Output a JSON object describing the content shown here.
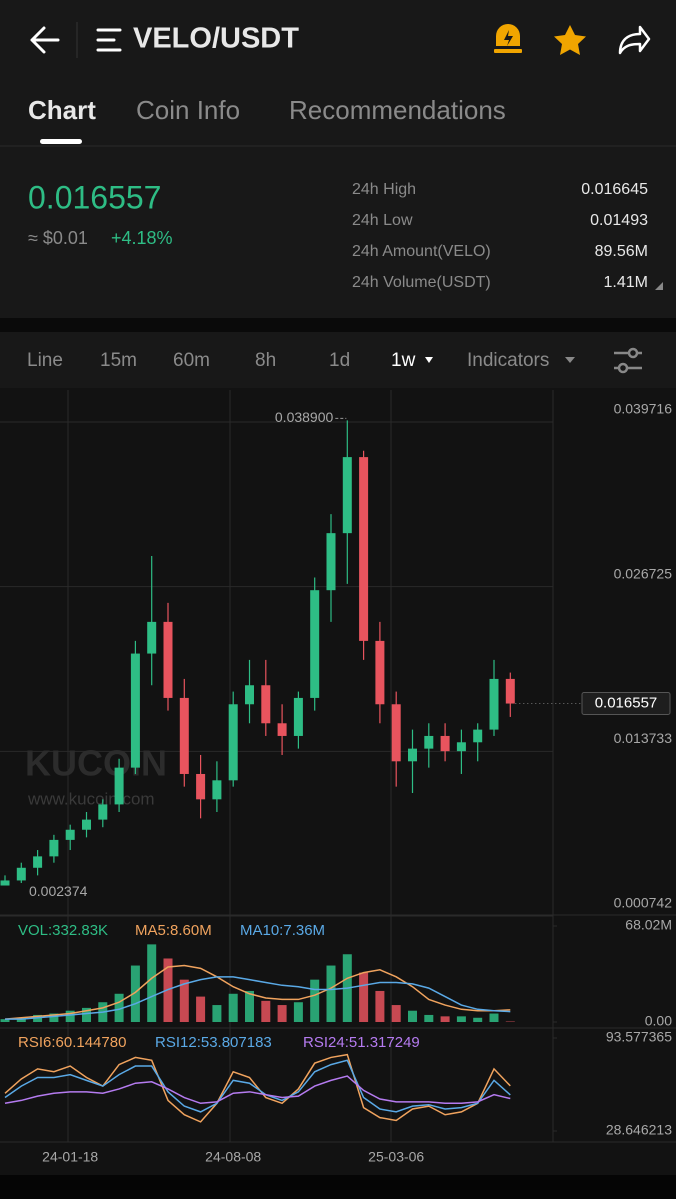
{
  "header": {
    "title": "VELO/USDT"
  },
  "tabs": [
    "Chart",
    "Coin Info",
    "Recommendations"
  ],
  "ticker": {
    "price": "0.016557",
    "usd": "≈ $0.01",
    "change": "+4.18%",
    "stats": [
      {
        "label": "24h High",
        "value": "0.016645"
      },
      {
        "label": "24h Low",
        "value": "0.01493"
      },
      {
        "label": "24h Amount(VELO)",
        "value": "89.56M"
      },
      {
        "label": "24h Volume(USDT)",
        "value": "1.41M"
      }
    ]
  },
  "timeframes": [
    "Line",
    "15m",
    "60m",
    "8h",
    "1d",
    "1w",
    "Indicators"
  ],
  "watermark": {
    "logo": "KUCOIN",
    "url": "www.kucoin.com"
  },
  "chart_data": [
    {
      "type": "candlestick",
      "up_color": "#2ebd85",
      "down_color": "#e8545e",
      "grid": true,
      "categories": [
        null,
        null,
        null,
        null,
        "24-01-18",
        null,
        null,
        null,
        null,
        null,
        null,
        null,
        null,
        null,
        "24-08-08",
        null,
        null,
        null,
        null,
        null,
        null,
        null,
        null,
        null,
        "25-03-06",
        null,
        null,
        null,
        null,
        null,
        null,
        null
      ],
      "open": [
        0.0022,
        0.0026,
        0.0036,
        0.0045,
        0.0058,
        0.0066,
        0.0074,
        0.0086,
        0.0115,
        0.0205,
        0.023,
        0.017,
        0.011,
        0.009,
        0.0105,
        0.0165,
        0.018,
        0.015,
        0.014,
        0.017,
        0.0255,
        0.03,
        0.036,
        0.0215,
        0.0165,
        0.012,
        0.013,
        0.014,
        0.0128,
        0.0135,
        0.0145,
        0.0185
      ],
      "high": [
        0.003,
        0.004,
        0.005,
        0.0062,
        0.007,
        0.008,
        0.009,
        0.0122,
        0.0215,
        0.0282,
        0.0245,
        0.0185,
        0.0125,
        0.012,
        0.0175,
        0.02,
        0.02,
        0.0165,
        0.0175,
        0.0265,
        0.0315,
        0.0389,
        0.0365,
        0.023,
        0.0175,
        0.0145,
        0.015,
        0.015,
        0.0145,
        0.015,
        0.02,
        0.019
      ],
      "low": [
        0.002374,
        0.0024,
        0.003,
        0.004,
        0.005,
        0.006,
        0.0068,
        0.008,
        0.011,
        0.018,
        0.016,
        0.01,
        0.0075,
        0.008,
        0.01,
        0.015,
        0.014,
        0.0125,
        0.013,
        0.016,
        0.023,
        0.026,
        0.02,
        0.015,
        0.01,
        0.0095,
        0.0115,
        0.012,
        0.011,
        0.012,
        0.014,
        0.0155
      ],
      "close": [
        0.0026,
        0.0036,
        0.0045,
        0.0058,
        0.0066,
        0.0074,
        0.0086,
        0.0115,
        0.0205,
        0.023,
        0.017,
        0.011,
        0.009,
        0.0105,
        0.0165,
        0.018,
        0.015,
        0.014,
        0.017,
        0.0255,
        0.03,
        0.036,
        0.0215,
        0.0165,
        0.012,
        0.013,
        0.014,
        0.0128,
        0.0135,
        0.0145,
        0.0185,
        0.016557
      ],
      "ylim": [
        0.000742,
        0.039716
      ],
      "yticks": [
        0.039716,
        0.026725,
        0.013733,
        0.000742
      ],
      "high_label": "0.038900",
      "low_label": "0.002374"
    },
    {
      "type": "bar",
      "name": "VOL:332.83K",
      "color": "#2ebd85",
      "values": [
        2,
        3,
        5,
        6,
        8,
        10,
        14,
        20,
        40,
        55,
        45,
        30,
        18,
        12,
        20,
        22,
        15,
        12,
        14,
        30,
        40,
        48,
        35,
        22,
        12,
        8,
        5,
        4,
        4,
        3,
        6,
        0.33
      ],
      "series": [
        {
          "name": "MA5:8.60M",
          "color": "#f0a35e",
          "values": [
            2,
            3,
            4,
            5,
            6,
            8,
            10,
            14,
            21,
            31,
            39,
            40,
            38,
            32,
            25,
            20,
            17,
            16,
            16,
            19,
            24,
            31,
            35,
            37,
            32,
            25,
            16,
            12,
            9,
            8,
            8,
            8.6
          ]
        },
        {
          "name": "MA10:7.36M",
          "color": "#5aa9e6",
          "values": [
            2,
            2,
            3,
            4,
            5,
            6,
            7,
            9,
            13,
            18,
            23,
            27,
            30,
            32,
            32,
            30,
            28,
            26,
            25,
            23,
            23,
            24,
            26,
            28,
            28,
            27,
            24,
            18,
            12,
            9,
            8,
            7.36
          ]
        }
      ],
      "ylim": [
        0,
        68.02
      ],
      "yticks": [
        {
          "value": 68.02,
          "label": "68.02M"
        },
        {
          "value": 0,
          "label": "0.00"
        }
      ]
    },
    {
      "type": "line",
      "series": [
        {
          "name": "RSI6:60.144780",
          "color": "#f0a35e",
          "values": [
            55,
            65,
            72,
            70,
            74,
            66,
            60,
            75,
            80,
            78,
            50,
            40,
            35,
            48,
            70,
            66,
            52,
            48,
            58,
            76,
            80,
            82,
            45,
            38,
            36,
            44,
            46,
            40,
            42,
            48,
            72,
            60.14478
          ]
        },
        {
          "name": "RSI12:53.807183",
          "color": "#5aa9e6",
          "values": [
            52,
            60,
            66,
            66,
            68,
            64,
            60,
            68,
            74,
            74,
            56,
            46,
            42,
            48,
            64,
            62,
            54,
            50,
            56,
            70,
            75,
            78,
            52,
            44,
            42,
            46,
            47,
            44,
            45,
            48,
            64,
            53.807183
          ]
        },
        {
          "name": "RSI24:51.317249",
          "color": "#b57bf0",
          "values": [
            48,
            50,
            53,
            55,
            56,
            56,
            55,
            58,
            62,
            63,
            58,
            52,
            48,
            49,
            55,
            56,
            54,
            52,
            53,
            60,
            64,
            67,
            57,
            51,
            49,
            49,
            49,
            48,
            48,
            49,
            54,
            51.317249
          ]
        }
      ],
      "ylim": [
        28.646213,
        93.577365
      ],
      "yticks": [
        93.577365,
        28.646213
      ]
    }
  ]
}
